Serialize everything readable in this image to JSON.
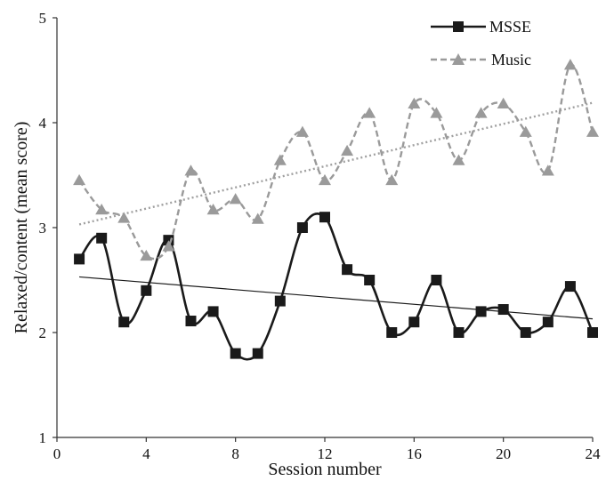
{
  "chart_data": {
    "type": "line",
    "title": "",
    "xlabel": "Session number",
    "ylabel": "Relaxed/content (mean score)",
    "xlim": [
      0,
      24
    ],
    "ylim": [
      1,
      5
    ],
    "xticks": [
      "0",
      "4",
      "8",
      "12",
      "16",
      "20",
      "24"
    ],
    "yticks": [
      "1",
      "2",
      "3",
      "4",
      "5"
    ],
    "grid": false,
    "legend_position": "top-right",
    "x": [
      1,
      2,
      3,
      4,
      5,
      6,
      7,
      8,
      9,
      10,
      11,
      12,
      13,
      14,
      15,
      16,
      17,
      18,
      19,
      20,
      21,
      22,
      23,
      24
    ],
    "series": [
      {
        "name": "MSSE",
        "color": "#1a1a1a",
        "marker": "square",
        "line_style": "solid",
        "values": [
          2.7,
          2.9,
          2.1,
          2.4,
          2.88,
          2.11,
          2.2,
          1.8,
          1.8,
          2.3,
          3.0,
          3.1,
          2.6,
          2.5,
          2.0,
          2.1,
          2.5,
          2.0,
          2.2,
          2.22,
          2.0,
          2.1,
          2.44,
          2.0
        ],
        "trendline": {
          "color": "#1a1a1a",
          "style": "solid",
          "start": 2.53,
          "end": 2.13
        }
      },
      {
        "name": "Music",
        "color": "#9a9a9a",
        "marker": "triangle",
        "line_style": "dashed",
        "values": [
          3.45,
          3.17,
          3.09,
          2.73,
          2.82,
          3.54,
          3.17,
          3.27,
          3.08,
          3.64,
          3.91,
          3.45,
          3.73,
          4.09,
          3.45,
          4.18,
          4.09,
          3.64,
          4.09,
          4.18,
          3.91,
          3.54,
          4.55,
          3.91
        ],
        "trendline": {
          "color": "#a0a0a0",
          "style": "dotted",
          "start": 3.03,
          "end": 4.19
        }
      }
    ]
  }
}
